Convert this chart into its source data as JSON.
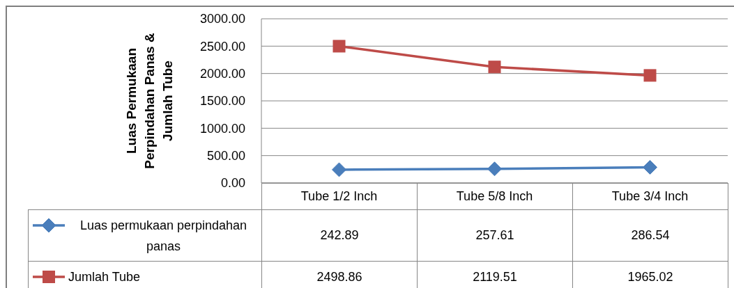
{
  "chart_data": {
    "type": "line",
    "ylabel": "Luas Permukaan Perpindahan Panas & Jumlah Tube",
    "categories": [
      "Tube 1/2 Inch",
      "Tube 5/8 Inch",
      "Tube 3/4 Inch"
    ],
    "series": [
      {
        "name": "Luas permukaan perpindahan panas",
        "color": "#4a7ebb",
        "marker": "diamond",
        "values": [
          242.89,
          257.61,
          286.54
        ]
      },
      {
        "name": "Jumlah Tube",
        "color": "#be4b48",
        "marker": "square",
        "values": [
          2498.86,
          2119.51,
          1965.02
        ]
      }
    ],
    "ylim": [
      0,
      3000
    ],
    "yticks": [
      {
        "value": 0,
        "label": "0.00"
      },
      {
        "value": 500,
        "label": "500.00"
      },
      {
        "value": 1000,
        "label": "1000.00"
      },
      {
        "value": 1500,
        "label": "1500.00"
      },
      {
        "value": 2000,
        "label": "2000.00"
      },
      {
        "value": 2500,
        "label": "2500.00"
      },
      {
        "value": 3000,
        "label": "3000.00"
      }
    ],
    "grid": "y",
    "legend": "bottom",
    "data_labels": true
  }
}
